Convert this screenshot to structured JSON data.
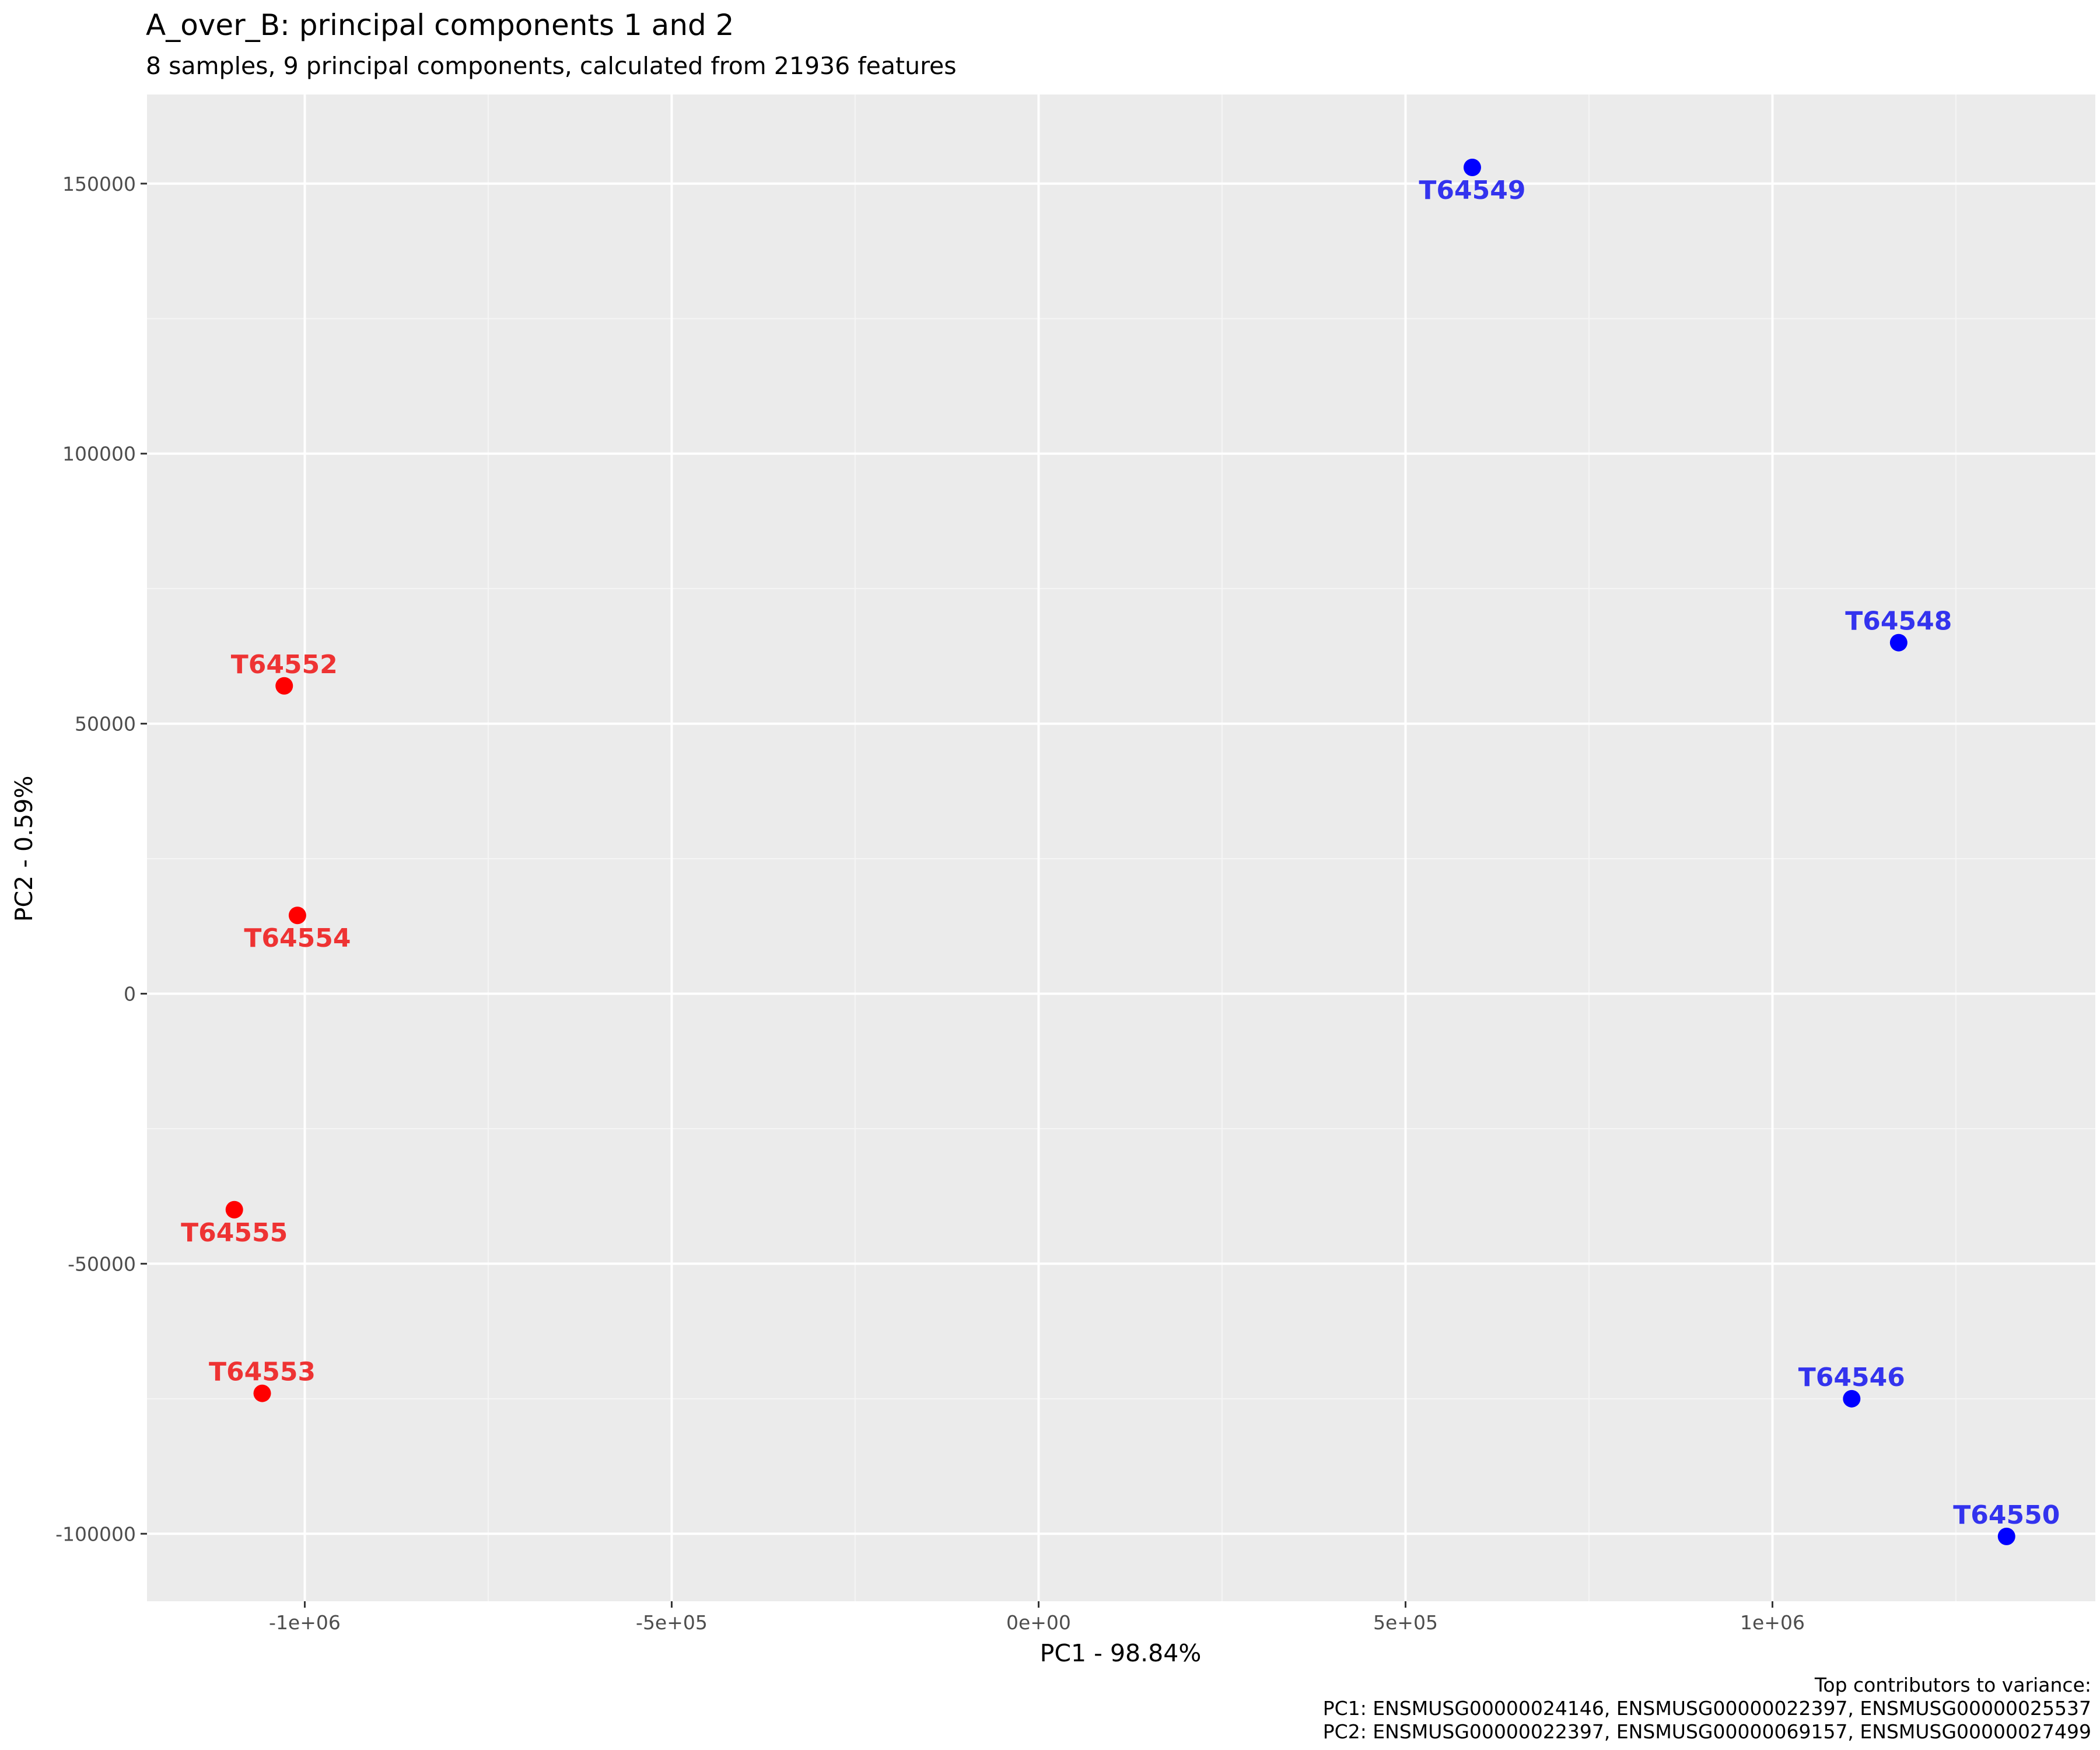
{
  "chart_data": {
    "type": "scatter",
    "title": "A_over_B: principal components 1 and 2",
    "subtitle": "8 samples, 9 principal components, calculated from 21936 features",
    "xlabel": "PC1 - 98.84%",
    "ylabel": "PC2 - 0.59%",
    "xlim": [
      -1215000,
      1440000
    ],
    "ylim": [
      -112500,
      166500
    ],
    "x_ticks": [
      {
        "value": -1000000,
        "label": "-1e+06"
      },
      {
        "value": -500000,
        "label": "-5e+05"
      },
      {
        "value": 0,
        "label": "0e+00"
      },
      {
        "value": 500000,
        "label": "5e+05"
      },
      {
        "value": 1000000,
        "label": "1e+06"
      }
    ],
    "y_ticks": [
      {
        "value": -100000,
        "label": "-100000"
      },
      {
        "value": -50000,
        "label": "-50000"
      },
      {
        "value": 0,
        "label": "0"
      },
      {
        "value": 50000,
        "label": "50000"
      },
      {
        "value": 100000,
        "label": "100000"
      },
      {
        "value": 150000,
        "label": "150000"
      }
    ],
    "x_minor_ticks": [
      -750000,
      -250000,
      250000,
      750000,
      1250000
    ],
    "y_minor_ticks": [
      -75000,
      -25000,
      25000,
      75000,
      125000
    ],
    "grid": true,
    "legend": "none",
    "series": [
      {
        "color": "#ff0000",
        "label_color": "#ee3333",
        "points": [
          {
            "label": "T64552",
            "x": -1028000,
            "y": 57000,
            "label_pos": "above"
          },
          {
            "label": "T64554",
            "x": -1010000,
            "y": 14500,
            "label_pos": "below"
          },
          {
            "label": "T64555",
            "x": -1096000,
            "y": -40000,
            "label_pos": "below"
          },
          {
            "label": "T64553",
            "x": -1058000,
            "y": -74000,
            "label_pos": "above"
          }
        ]
      },
      {
        "color": "#0000ff",
        "label_color": "#3333ee",
        "points": [
          {
            "label": "T64549",
            "x": 591000,
            "y": 153000,
            "label_pos": "below"
          },
          {
            "label": "T64548",
            "x": 1172000,
            "y": 65000,
            "label_pos": "above"
          },
          {
            "label": "T64546",
            "x": 1108000,
            "y": -75000,
            "label_pos": "above"
          },
          {
            "label": "T64550",
            "x": 1319000,
            "y": -100500,
            "label_pos": "above"
          }
        ]
      }
    ]
  },
  "caption": {
    "heading": "Top contributors to variance:",
    "pc1": "PC1: ENSMUSG00000024146, ENSMUSG00000022397, ENSMUSG00000025537",
    "pc2": "PC2: ENSMUSG00000022397, ENSMUSG00000069157, ENSMUSG00000027499"
  },
  "colors": {
    "panel_background": "#ebebeb",
    "grid_major": "#ffffff",
    "grid_minor": "#f5f5f5"
  }
}
